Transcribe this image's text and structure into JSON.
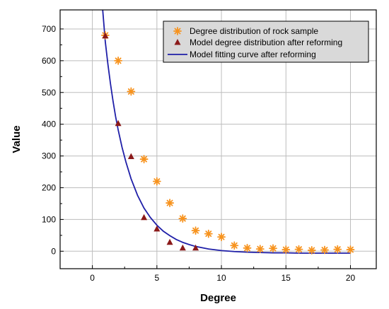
{
  "chart_data": {
    "type": "scatter",
    "title": "",
    "xlabel": "Degree",
    "ylabel": "Value",
    "xlim": [
      -2.5,
      22
    ],
    "ylim": [
      -55,
      760
    ],
    "xticks": [
      0,
      5,
      10,
      15,
      20
    ],
    "yticks": [
      0,
      100,
      200,
      300,
      400,
      500,
      600,
      700
    ],
    "grid": true,
    "legend_position": "top-right",
    "series": [
      {
        "name": "Degree distribution of rock sample",
        "kind": "scatter",
        "marker": "asterisk",
        "color": "#f7931e",
        "x": [
          1,
          2,
          3,
          4,
          5,
          6,
          7,
          8,
          9,
          10,
          11,
          12,
          13,
          14,
          15,
          16,
          17,
          18,
          19,
          20
        ],
        "y": [
          680,
          600,
          503,
          290,
          220,
          152,
          103,
          65,
          55,
          45,
          18,
          10,
          7,
          9,
          5,
          6,
          3,
          4,
          6,
          5
        ]
      },
      {
        "name": "Model degree distribution after reforming",
        "kind": "scatter",
        "marker": "triangle",
        "color": "#8b1a1a",
        "x": [
          1,
          2,
          3,
          4,
          5,
          6,
          7,
          8
        ],
        "y": [
          678,
          402,
          298,
          106,
          70,
          28,
          10,
          10
        ]
      },
      {
        "name": "Model fitting curve after reforming",
        "kind": "line",
        "color": "#1f1fa8",
        "x": [
          0.8,
          1,
          1.2,
          1.4,
          1.6,
          1.8,
          2,
          2.3,
          2.6,
          3,
          3.5,
          4,
          4.5,
          5,
          5.5,
          6,
          6.5,
          7,
          7.5,
          8,
          9,
          10,
          11,
          12,
          13,
          14,
          15,
          16,
          17,
          18,
          19,
          20
        ],
        "y": [
          760,
          660,
          590,
          528,
          473,
          424,
          382,
          327,
          281,
          228,
          176,
          136,
          106,
          82,
          63,
          49,
          37,
          28,
          21,
          15,
          7,
          2,
          -1,
          -3,
          -4,
          -5,
          -5,
          -6,
          -6,
          -6,
          -6,
          -6
        ]
      }
    ]
  }
}
